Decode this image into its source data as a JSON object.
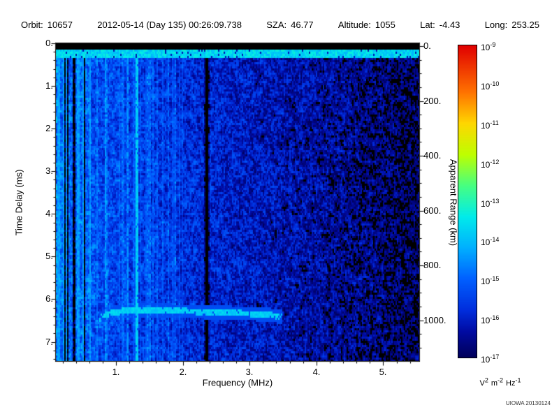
{
  "header": {
    "items": [
      {
        "name": "orbit",
        "label": "Orbit:",
        "value": "10657"
      },
      {
        "name": "datetime",
        "label": "",
        "value": "2012-05-14 (Day 135) 00:26:09.738"
      },
      {
        "name": "sza",
        "label": "SZA:",
        "value": "46.77"
      },
      {
        "name": "altitude",
        "label": "Altitude:",
        "value": "1055"
      },
      {
        "name": "lat",
        "label": "Lat:",
        "value": "-4.43"
      },
      {
        "name": "long",
        "label": "Long:",
        "value": "253.25"
      }
    ]
  },
  "chart_data": {
    "type": "heatmap",
    "title": "",
    "xlabel": "Frequency (MHz)",
    "ylabel_left": "Time Delay (ms)",
    "ylabel_right": "Apparent Range (km)",
    "xlim_mhz": [
      0.1,
      5.54
    ],
    "ylim_ms": [
      0,
      7.45
    ],
    "xticks_mhz": [
      1,
      2,
      3,
      4,
      5
    ],
    "xtick_labels": [
      "1.",
      "2.",
      "3.",
      "4.",
      "5."
    ],
    "yticks_ms": [
      0,
      1,
      2,
      3,
      4,
      5,
      6,
      7
    ],
    "ytick_ms_labels": [
      "0.",
      "1.",
      "2.",
      "3.",
      "4.",
      "5.",
      "6.",
      "7."
    ],
    "yticks_km": [
      0,
      200,
      400,
      600,
      800,
      1000
    ],
    "ytick_km_labels": [
      "0.",
      "200.",
      "400.",
      "600.",
      "800.",
      "1000."
    ],
    "colorbar": {
      "log_min": -17,
      "log_max": -9,
      "tick_base": "10",
      "tick_exponents": [
        "-9",
        "-10",
        "-11",
        "-12",
        "-13",
        "-14",
        "-15",
        "-16",
        "-17"
      ],
      "unit_parts": [
        {
          "base": "V",
          "sup": "2"
        },
        {
          "base": "m",
          "sup": "-2"
        },
        {
          "base": "Hz",
          "sup": "-1"
        }
      ]
    },
    "features": {
      "noise_seed": 20130124,
      "base_level_log": -15.1,
      "freq_slope_log_per_mhz": -0.33,
      "sigma_log": 0.45,
      "top_black_band_ms": [
        0,
        0.16
      ],
      "transmit_pulse_ms": [
        0.16,
        0.34
      ],
      "transmit_pulse_level_log": -13.7,
      "stripe_region_mhz": [
        0.1,
        0.62
      ],
      "bright_line_mhz": 1.32,
      "minor_bright_lines_mhz": [
        0.84,
        1.18
      ],
      "dark_line_mhz": 2.36,
      "echo_trace_points_mhz_ms": [
        [
          0.75,
          6.45
        ],
        [
          0.9,
          6.34
        ],
        [
          1.1,
          6.28
        ],
        [
          1.5,
          6.26
        ],
        [
          2.0,
          6.28
        ],
        [
          2.5,
          6.31
        ],
        [
          3.0,
          6.34
        ],
        [
          3.3,
          6.37
        ],
        [
          3.5,
          6.42
        ]
      ],
      "echo_trace_level_log": -13.8
    }
  },
  "footer": {
    "credit": "UIOWA 20130124"
  }
}
